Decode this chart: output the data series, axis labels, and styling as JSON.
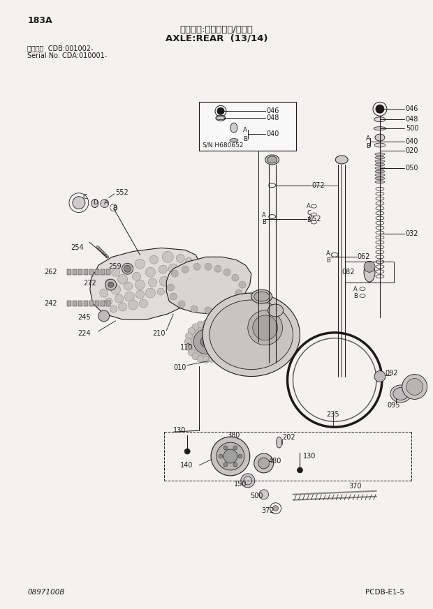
{
  "bg_color": "#ffffff",
  "page_bg": "#f5f2ee",
  "lc": "#1a1a1a",
  "title_japanese": "アクスル:リヤ（１３/１４）",
  "title_english": "AXLE:REAR  (13/14)",
  "page_id": "183A",
  "serial_line1": "適用号機  CDB:001002-",
  "serial_line2": "Serial No. CDA:010001-",
  "bottom_left": "0897100B",
  "bottom_right": "PCDB-E1-5",
  "sn_label": "S/N:H680652"
}
